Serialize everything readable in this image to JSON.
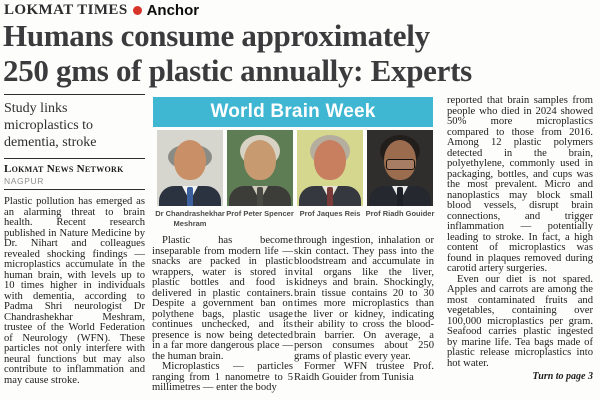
{
  "masthead": {
    "paper": "LOKMAT TIMES",
    "dot_color": "#d8352a",
    "tag": "Anchor"
  },
  "headline": {
    "line1": "Humans consume approximately",
    "line2": "250 gms of plastic annually: Experts"
  },
  "left_column": {
    "subhead": "Study links microplastics to dementia, stroke",
    "byline": "Lokmat News Network",
    "dateline": "NAGPUR",
    "body": "Plastic pollution has emerged as an alarming threat to brain health. Recent research published in Nature Medicine by Dr. Nihart and colleagues revealed shocking findings — microplastics accumulate in the human brain, with levels up to 10 times higher in individuals with dementia, according to Padma Shri neurologist Dr Chandrashekhar Meshram, trustee of the World Federation of Neurology (WFN). These particles not only interfere with neural functions but may also contribute to inflammation and may cause stroke."
  },
  "feature": {
    "banner": {
      "label": "World Brain Week",
      "bg": "#3fb6d2"
    },
    "people": [
      {
        "name": "Dr Chandrashekhar Meshram",
        "colors": {
          "bg": "#d6d6cf",
          "skin": "#c98f66",
          "hair": "#8b8b85",
          "suit": "#2b3340",
          "shirt": "#f2f2f2",
          "tie": "#3c5f9e"
        }
      },
      {
        "name": "Prof Peter Spencer",
        "colors": {
          "bg": "#5f7d54",
          "skin": "#c79a70",
          "hair": "#d8d2c4",
          "suit": "#3c3c38",
          "shirt": "#cfc9bb",
          "tie": "#4a4a44"
        }
      },
      {
        "name": "Prof Jaques Reis",
        "colors": {
          "bg": "#d6d78f",
          "skin": "#c77f60",
          "hair": "#b5ae9e",
          "suit": "#35383e",
          "shirt": "#e8e4da",
          "tie": "#7a3a3a"
        }
      },
      {
        "name": "Prof Riadh Gouider",
        "colors": {
          "bg": "#2f2e2c",
          "skin": "#9b6c4e",
          "hair": "#221e1c",
          "suit": "#25282e",
          "shirt": "#e8e8e8",
          "tie": "#1d2026"
        }
      }
    ]
  },
  "column2": {
    "p1": "Plastic has become inseparable from modern life — snacks are packed in plastic wrappers, water is stored in plastic bottles and food is delivered in plastic containers. Despite a government ban on polythene bags, plastic usage continues unchecked, and its presence is now being detected in a far more dangerous place — the human brain.",
    "p2": "Microplastics — particles ranging from 1 nanometre to 5 millimetres — enter the body"
  },
  "column3": {
    "p1": "through ingestion, inhalation or skin contact. They pass into the bloodstream and accumulate in vital organs like the liver, kidneys and brain. Shockingly, brain tissue contains 20 to 30 times more microplastics than the liver or kidney, indicating their ability to cross the blood-brain barrier. On average, a person consumes about 250 grams of plastic every year.",
    "p2": "Former WFN trustee Prof. Raidh Gouider from Tunisia"
  },
  "column4": {
    "p1": "reported that brain samples from people who died in 2024 showed 50% more microplastics compared to those from 2016. Among 12 plastic polymers detected in the brain, polyethylene, commonly used in packaging, bottles, and cups was the most prevalent. Micro and nanoplastics may block small blood vessels, disrupt brain connections, and trigger inflammation — potentially leading to stroke. In fact, a high content of microplastics was found in plaques removed during carotid artery surgeries.",
    "p2": "Even our diet is not spared. Apples and carrots are among the most contaminated fruits and vegetables, containing over 100,000 microplastics per gram. Seafood carries plastic ingested by marine life. Tea bags made of plastic release microplastics into hot water.",
    "jumpline": "Turn to page 3"
  }
}
